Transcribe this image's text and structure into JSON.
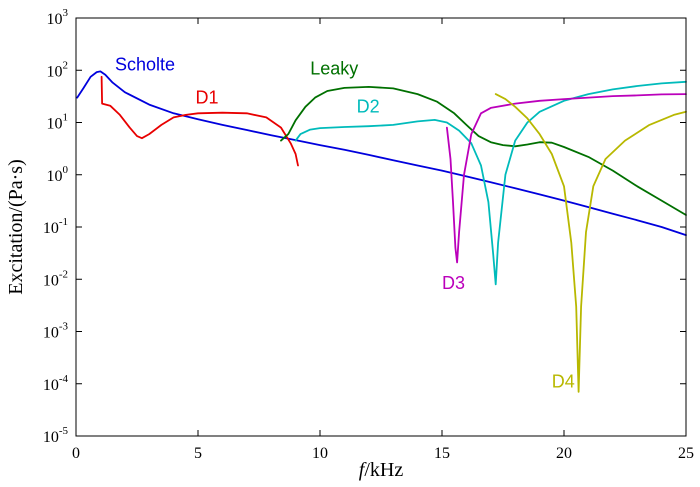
{
  "chart_data": {
    "type": "line",
    "title": "",
    "xlabel_italic": "f",
    "xlabel_rest": "/kHz",
    "ylabel": "Excitation/(Pa·s)",
    "xlim": [
      0,
      25
    ],
    "ylim": [
      1e-05,
      1000
    ],
    "yscale": "log",
    "grid": false,
    "x_ticks": [
      0,
      5,
      10,
      15,
      20,
      25
    ],
    "y_ticks": [
      {
        "value": 1e-05,
        "base": "10",
        "exp": "-5"
      },
      {
        "value": 0.0001,
        "base": "10",
        "exp": "-4"
      },
      {
        "value": 0.001,
        "base": "10",
        "exp": "-3"
      },
      {
        "value": 0.01,
        "base": "10",
        "exp": "-2"
      },
      {
        "value": 0.1,
        "base": "10",
        "exp": "-1"
      },
      {
        "value": 1,
        "base": "10",
        "exp": "0"
      },
      {
        "value": 10,
        "base": "10",
        "exp": "1"
      },
      {
        "value": 100,
        "base": "10",
        "exp": "2"
      },
      {
        "value": 1000,
        "base": "10",
        "exp": "3"
      }
    ],
    "series": [
      {
        "name": "Scholte",
        "color": "#0000dd",
        "label_at": [
          1.6,
          100
        ],
        "points": [
          [
            0.05,
            30
          ],
          [
            0.3,
            45
          ],
          [
            0.6,
            75
          ],
          [
            0.85,
            92
          ],
          [
            1.0,
            95
          ],
          [
            1.2,
            82
          ],
          [
            1.5,
            58
          ],
          [
            2,
            38
          ],
          [
            3,
            22
          ],
          [
            4,
            15
          ],
          [
            5,
            11.5
          ],
          [
            6,
            9
          ],
          [
            7,
            7.2
          ],
          [
            8,
            5.7
          ],
          [
            9,
            4.6
          ],
          [
            10,
            3.7
          ],
          [
            11,
            3.0
          ],
          [
            12,
            2.4
          ],
          [
            13,
            1.9
          ],
          [
            14,
            1.5
          ],
          [
            15,
            1.2
          ],
          [
            16,
            0.93
          ],
          [
            17,
            0.72
          ],
          [
            18,
            0.55
          ],
          [
            19,
            0.42
          ],
          [
            20,
            0.32
          ],
          [
            21,
            0.24
          ],
          [
            22,
            0.18
          ],
          [
            23,
            0.135
          ],
          [
            24,
            0.1
          ],
          [
            25,
            0.07
          ]
        ]
      },
      {
        "name": "D1",
        "color": "#e80000",
        "label_at": [
          4.9,
          23
        ],
        "points": [
          [
            1.05,
            75
          ],
          [
            1.07,
            23
          ],
          [
            1.4,
            21
          ],
          [
            1.8,
            14
          ],
          [
            2.2,
            8
          ],
          [
            2.5,
            5.5
          ],
          [
            2.7,
            5
          ],
          [
            3,
            6
          ],
          [
            3.5,
            9
          ],
          [
            4,
            12.5
          ],
          [
            4.5,
            14
          ],
          [
            5,
            15
          ],
          [
            6,
            15.4
          ],
          [
            7,
            15
          ],
          [
            7.8,
            12.5
          ],
          [
            8.4,
            8
          ],
          [
            8.8,
            4
          ],
          [
            9.0,
            2.5
          ],
          [
            9.1,
            1.5
          ]
        ]
      },
      {
        "name": "Leaky",
        "color": "#007000",
        "label_at": [
          9.6,
          83
        ],
        "points": [
          [
            8.4,
            4.5
          ],
          [
            8.7,
            6
          ],
          [
            9.0,
            11
          ],
          [
            9.4,
            20
          ],
          [
            9.8,
            30
          ],
          [
            10.3,
            40
          ],
          [
            11,
            46
          ],
          [
            12,
            48
          ],
          [
            13,
            45
          ],
          [
            14,
            35
          ],
          [
            14.8,
            25
          ],
          [
            15.5,
            15
          ],
          [
            16,
            9
          ],
          [
            16.5,
            5.5
          ],
          [
            17,
            4.2
          ],
          [
            17.5,
            3.7
          ],
          [
            18,
            3.5
          ],
          [
            18.5,
            3.8
          ],
          [
            19,
            4.2
          ],
          [
            19.5,
            4.1
          ],
          [
            20,
            3.4
          ],
          [
            21,
            2.2
          ],
          [
            22,
            1.2
          ],
          [
            23,
            0.6
          ],
          [
            24,
            0.32
          ],
          [
            25,
            0.17
          ]
        ]
      },
      {
        "name": "D2",
        "color": "#00bbbb",
        "label_at": [
          11.5,
          15.5
        ],
        "points": [
          [
            9.0,
            4.5
          ],
          [
            9.2,
            6
          ],
          [
            9.6,
            7.3
          ],
          [
            10,
            7.8
          ],
          [
            11,
            8.2
          ],
          [
            12,
            8.5
          ],
          [
            13,
            9
          ],
          [
            14,
            10.5
          ],
          [
            14.7,
            11.2
          ],
          [
            15.2,
            10
          ],
          [
            15.7,
            7
          ],
          [
            16.2,
            4
          ],
          [
            16.6,
            1.5
          ],
          [
            16.9,
            0.3
          ],
          [
            17.1,
            0.03
          ],
          [
            17.2,
            0.008
          ],
          [
            17.3,
            0.05
          ],
          [
            17.6,
            1
          ],
          [
            18,
            4.5
          ],
          [
            18.5,
            10
          ],
          [
            19,
            16
          ],
          [
            20,
            26
          ],
          [
            21,
            35
          ],
          [
            22,
            43
          ],
          [
            23,
            50
          ],
          [
            24,
            56
          ],
          [
            25,
            60
          ]
        ]
      },
      {
        "name": "D3",
        "color": "#bb00bb",
        "label_at": [
          15.0,
          0.0065
        ],
        "points": [
          [
            15.2,
            8
          ],
          [
            15.35,
            2
          ],
          [
            15.45,
            0.3
          ],
          [
            15.55,
            0.04
          ],
          [
            15.62,
            0.021
          ],
          [
            15.7,
            0.08
          ],
          [
            15.9,
            1
          ],
          [
            16.2,
            6
          ],
          [
            16.6,
            15
          ],
          [
            17,
            19
          ],
          [
            18,
            23
          ],
          [
            19,
            26
          ],
          [
            20,
            28
          ],
          [
            21,
            30
          ],
          [
            22,
            32
          ],
          [
            23,
            33
          ],
          [
            24,
            34.5
          ],
          [
            25,
            35
          ]
        ]
      },
      {
        "name": "D4",
        "color": "#b8b800",
        "label_at": [
          19.5,
          8.5e-05
        ],
        "points": [
          [
            17.2,
            35
          ],
          [
            17.6,
            28
          ],
          [
            18,
            20
          ],
          [
            18.5,
            12
          ],
          [
            19,
            6
          ],
          [
            19.5,
            2.5
          ],
          [
            20,
            0.6
          ],
          [
            20.3,
            0.05
          ],
          [
            20.5,
            0.003
          ],
          [
            20.6,
            7e-05
          ],
          [
            20.7,
            0.003
          ],
          [
            20.9,
            0.08
          ],
          [
            21.2,
            0.6
          ],
          [
            21.7,
            2
          ],
          [
            22.5,
            4.5
          ],
          [
            23.5,
            9
          ],
          [
            24.5,
            14
          ],
          [
            25,
            16
          ]
        ]
      }
    ]
  }
}
